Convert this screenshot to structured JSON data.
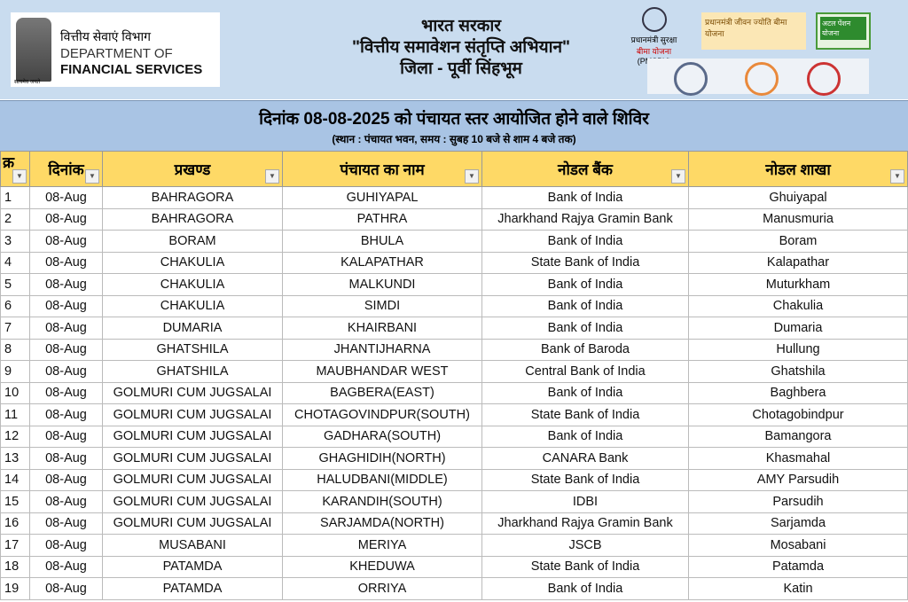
{
  "header": {
    "dept_hindi": "वित्तीय सेवाएं विभाग",
    "dept_line1": "DEPARTMENT OF",
    "dept_line2": "FINANCIAL SERVICES",
    "emblem_motto": "सत्यमेव जयते",
    "title1": "भारत सरकार",
    "title2": "\"वित्तीय समावेशन संतृप्ति अभियान\"",
    "title3": "जिला - पूर्वी सिंहभूम",
    "pmsby_line1": "प्रधानमंत्री सुरक्षा",
    "pmsby_line2": "बीमा योजना",
    "pmsby_abbr": "(PMSBY)",
    "pmjjby": "प्रधानमंत्री जीवन ज्योति बीमा योजना",
    "apy": "अटल पेंशन योजना"
  },
  "title": {
    "main": "दिनांक 08-08-2025 को पंचायत स्तर आयोजित होने वाले शिविर",
    "sub": "(स्थान : पंचायत भवन, समय : सुबह 10 बजे से शाम 4 बजे तक)"
  },
  "columns": [
    "क्र",
    "दिनांक",
    "प्रखण्ड",
    "पंचायत का नाम",
    "नोडल बैंक",
    "नोडल शाखा"
  ],
  "rows": [
    [
      "1",
      "08-Aug",
      "BAHRAGORA",
      "GUHIYAPAL",
      "Bank of India",
      "Ghuiyapal"
    ],
    [
      "2",
      "08-Aug",
      "BAHRAGORA",
      "PATHRA",
      "Jharkhand Rajya Gramin Bank",
      "Manusmuria"
    ],
    [
      "3",
      "08-Aug",
      "BORAM",
      "BHULA",
      "Bank of India",
      "Boram"
    ],
    [
      "4",
      "08-Aug",
      "CHAKULIA",
      "KALAPATHAR",
      "State Bank of India",
      "Kalapathar"
    ],
    [
      "5",
      "08-Aug",
      "CHAKULIA",
      "MALKUNDI",
      "Bank of India",
      "Muturkham"
    ],
    [
      "6",
      "08-Aug",
      "CHAKULIA",
      "SIMDI",
      "Bank of India",
      "Chakulia"
    ],
    [
      "7",
      "08-Aug",
      "DUMARIA",
      "KHAIRBANI",
      "Bank of India",
      "Dumaria"
    ],
    [
      "8",
      "08-Aug",
      "GHATSHILA",
      "JHANTIJHARNA",
      "Bank of Baroda",
      "Hullung"
    ],
    [
      "9",
      "08-Aug",
      "GHATSHILA",
      "MAUBHANDAR WEST",
      "Central Bank of India",
      "Ghatshila"
    ],
    [
      "10",
      "08-Aug",
      "GOLMURI CUM JUGSALAI",
      "BAGBERA(EAST)",
      "Bank of India",
      "Baghbera"
    ],
    [
      "11",
      "08-Aug",
      "GOLMURI CUM JUGSALAI",
      "CHOTAGOVINDPUR(SOUTH)",
      "State Bank of India",
      "Chotagobindpur"
    ],
    [
      "12",
      "08-Aug",
      "GOLMURI CUM JUGSALAI",
      "GADHARA(SOUTH)",
      "Bank of India",
      "Bamangora"
    ],
    [
      "13",
      "08-Aug",
      "GOLMURI CUM JUGSALAI",
      "GHAGHIDIH(NORTH)",
      "CANARA Bank",
      "Khasmahal"
    ],
    [
      "14",
      "08-Aug",
      "GOLMURI CUM JUGSALAI",
      "HALUDBANI(MIDDLE)",
      "State Bank of India",
      "AMY Parsudih"
    ],
    [
      "15",
      "08-Aug",
      "GOLMURI CUM JUGSALAI",
      "KARANDIH(SOUTH)",
      "IDBI",
      "Parsudih"
    ],
    [
      "16",
      "08-Aug",
      "GOLMURI CUM JUGSALAI",
      "SARJAMDA(NORTH)",
      "Jharkhand Rajya Gramin Bank",
      "Sarjamda"
    ],
    [
      "17",
      "08-Aug",
      "MUSABANI",
      "MERIYA",
      "JSCB",
      "Mosabani"
    ],
    [
      "18",
      "08-Aug",
      "PATAMDA",
      "KHEDUWA",
      "State Bank of India",
      "Patamda"
    ],
    [
      "19",
      "08-Aug",
      "PATAMDA",
      "ORRIYA",
      "Bank of India",
      "Katin"
    ]
  ]
}
